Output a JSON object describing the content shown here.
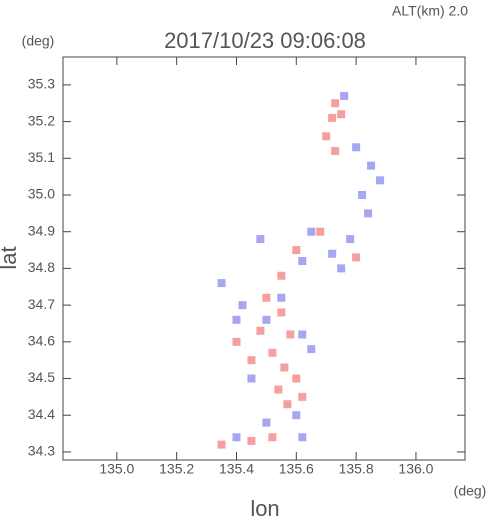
{
  "chart_data": {
    "type": "scatter",
    "title": "2017/10/23 09:06:08",
    "subtitle": "ALT(km) 2.0",
    "x_label": "lon",
    "y_label": "lat",
    "x_unit": "(deg)",
    "y_unit": "(deg)",
    "xlim": [
      134.82,
      136.164
    ],
    "ylim": [
      34.278,
      35.376
    ],
    "xticks": [
      {
        "value": 135,
        "label": "135.0"
      },
      135.2,
      135.4,
      135.6,
      135.8,
      {
        "value": 136,
        "label": "136.0"
      }
    ],
    "yticks": [
      34.3,
      34.4,
      34.5,
      34.6,
      34.7,
      34.8,
      34.9,
      {
        "value": 35,
        "label": "35.0"
      },
      35.1,
      35.2,
      35.3
    ],
    "series": [
      {
        "color": "#f07878",
        "x": [
          135.73,
          135.72,
          135.75,
          135.7,
          135.73,
          135.68,
          135.6,
          135.55,
          135.5,
          135.55,
          135.48,
          135.58,
          135.52,
          135.56,
          135.6,
          135.54,
          135.57,
          135.45,
          135.4,
          135.35,
          135.45,
          135.52,
          135.8,
          135.62
        ],
        "y": [
          35.25,
          35.21,
          35.22,
          35.16,
          35.12,
          34.9,
          34.85,
          34.78,
          34.72,
          34.68,
          34.63,
          34.62,
          34.57,
          34.53,
          34.5,
          34.47,
          34.43,
          34.55,
          34.6,
          34.32,
          34.33,
          34.34,
          34.83,
          34.45
        ]
      },
      {
        "color": "#8080ee",
        "x": [
          135.76,
          135.8,
          135.85,
          135.88,
          135.82,
          135.84,
          135.78,
          135.72,
          135.65,
          135.62,
          135.48,
          135.42,
          135.4,
          135.5,
          135.62,
          135.65,
          135.45,
          135.6,
          135.5,
          135.62,
          135.4,
          135.75,
          135.55,
          135.35
        ],
        "y": [
          35.27,
          35.13,
          35.08,
          35.04,
          35.0,
          34.95,
          34.88,
          34.84,
          34.9,
          34.82,
          34.88,
          34.7,
          34.66,
          34.66,
          34.62,
          34.58,
          34.5,
          34.4,
          34.38,
          34.34,
          34.34,
          34.8,
          34.72,
          34.76
        ]
      }
    ]
  }
}
